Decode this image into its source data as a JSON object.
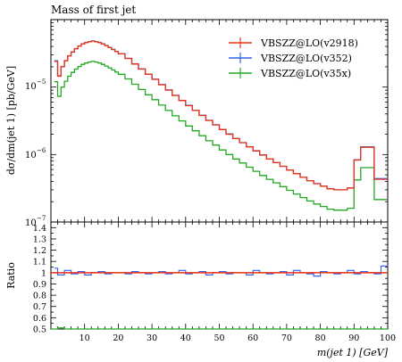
{
  "chart_data": [
    {
      "type": "line",
      "title": "Mass of first jet",
      "xlabel": "",
      "ylabel": "dσ/dm(jet 1) [pb/GeV]",
      "yscale": "log",
      "xlim": [
        0,
        100
      ],
      "ylim": [
        1e-07,
        0.0001
      ],
      "y_ticks": [
        "10^{-7}",
        "10^{-6}",
        "10^{-5}"
      ],
      "legend": "top-right",
      "series": [
        {
          "name": "VBSZZ@LO(v2918)",
          "color": "#ee3311",
          "x": [
            1,
            2,
            3,
            4,
            5,
            6,
            7,
            8,
            9,
            10,
            11,
            12,
            13,
            14,
            15,
            16,
            17,
            18,
            19,
            20,
            22,
            24,
            26,
            28,
            30,
            32,
            34,
            36,
            38,
            40,
            42,
            44,
            46,
            48,
            50,
            52,
            54,
            56,
            58,
            60,
            62,
            64,
            66,
            68,
            70,
            72,
            74,
            76,
            78,
            80,
            82,
            84,
            86,
            88,
            90,
            92,
            94,
            96,
            98,
            100
          ],
          "y": [
            2.4e-05,
            1.45e-05,
            2e-05,
            2.45e-05,
            2.9e-05,
            3.3e-05,
            3.7e-05,
            4.05e-05,
            4.35e-05,
            4.55e-05,
            4.7e-05,
            4.8e-05,
            4.7e-05,
            4.55e-05,
            4.35e-05,
            4.1e-05,
            3.85e-05,
            3.6e-05,
            3.35e-05,
            3.1e-05,
            2.65e-05,
            2.2e-05,
            1.85e-05,
            1.55e-05,
            1.3e-05,
            1.08e-05,
            9e-06,
            7.5e-06,
            6.3e-06,
            5.3e-06,
            4.5e-06,
            3.8e-06,
            3.2e-06,
            2.75e-06,
            2.35e-06,
            2e-06,
            1.72e-06,
            1.5e-06,
            1.3e-06,
            1.13e-06,
            9.8e-07,
            8.6e-07,
            7.6e-07,
            6.7e-07,
            5.9e-07,
            5.2e-07,
            4.6e-07,
            4.1e-07,
            3.7e-07,
            3.4e-07,
            3.1e-07,
            3e-07,
            3e-07,
            3.2e-07,
            8.3e-07,
            1.28e-06,
            1.28e-06,
            4.3e-07,
            4.3e-07,
            4.3e-07
          ]
        },
        {
          "name": "VBSZZ@LO(v352)",
          "color": "#3366ee",
          "x": [
            1,
            2,
            3,
            4,
            5,
            6,
            7,
            8,
            9,
            10,
            11,
            12,
            13,
            14,
            15,
            16,
            17,
            18,
            19,
            20,
            22,
            24,
            26,
            28,
            30,
            32,
            34,
            36,
            38,
            40,
            42,
            44,
            46,
            48,
            50,
            52,
            54,
            56,
            58,
            60,
            62,
            64,
            66,
            68,
            70,
            72,
            74,
            76,
            78,
            80,
            82,
            84,
            86,
            88,
            90,
            92,
            94,
            96,
            98,
            100
          ],
          "y": [
            2.45e-05,
            1.47e-05,
            2.02e-05,
            2.47e-05,
            2.92e-05,
            3.32e-05,
            3.72e-05,
            4.08e-05,
            4.38e-05,
            4.58e-05,
            4.73e-05,
            4.83e-05,
            4.73e-05,
            4.58e-05,
            4.38e-05,
            4.13e-05,
            3.88e-05,
            3.63e-05,
            3.37e-05,
            3.12e-05,
            2.67e-05,
            2.22e-05,
            1.86e-05,
            1.56e-05,
            1.31e-05,
            1.09e-05,
            9.1e-06,
            7.55e-06,
            6.35e-06,
            5.35e-06,
            4.52e-06,
            3.82e-06,
            3.22e-06,
            2.77e-06,
            2.36e-06,
            2.02e-06,
            1.73e-06,
            1.5e-06,
            1.31e-06,
            1.14e-06,
            9.9e-07,
            8.6e-07,
            7.6e-07,
            6.7e-07,
            5.9e-07,
            5.2e-07,
            4.6e-07,
            4.1e-07,
            3.7e-07,
            3.4e-07,
            3.1e-07,
            3e-07,
            3e-07,
            3.2e-07,
            8.4e-07,
            1.3e-06,
            1.3e-06,
            4.4e-07,
            4.4e-07,
            4.4e-07
          ]
        },
        {
          "name": "VBSZZ@LO(v35x)",
          "color": "#22aa22",
          "x": [
            1,
            2,
            3,
            4,
            5,
            6,
            7,
            8,
            9,
            10,
            11,
            12,
            13,
            14,
            15,
            16,
            17,
            18,
            19,
            20,
            22,
            24,
            26,
            28,
            30,
            32,
            34,
            36,
            38,
            40,
            42,
            44,
            46,
            48,
            50,
            52,
            54,
            56,
            58,
            60,
            62,
            64,
            66,
            68,
            70,
            72,
            74,
            76,
            78,
            80,
            82,
            84,
            86,
            88,
            90,
            92,
            94,
            96,
            98,
            100
          ],
          "y": [
            1.2e-05,
            7.3e-06,
            1e-05,
            1.22e-05,
            1.45e-05,
            1.65e-05,
            1.85e-05,
            2.02e-05,
            2.17e-05,
            2.27e-05,
            2.35e-05,
            2.4e-05,
            2.35e-05,
            2.27e-05,
            2.17e-05,
            2.05e-05,
            1.92e-05,
            1.8e-05,
            1.67e-05,
            1.55e-05,
            1.32e-05,
            1.1e-05,
            9.2e-06,
            7.7e-06,
            6.5e-06,
            5.4e-06,
            4.5e-06,
            3.75e-06,
            3.15e-06,
            2.65e-06,
            2.25e-06,
            1.9e-06,
            1.6e-06,
            1.38e-06,
            1.17e-06,
            1e-06,
            8.6e-07,
            7.5e-07,
            6.5e-07,
            5.65e-07,
            4.9e-07,
            4.3e-07,
            3.8e-07,
            3.35e-07,
            2.95e-07,
            2.6e-07,
            2.3e-07,
            2.05e-07,
            1.85e-07,
            1.7e-07,
            1.55e-07,
            1.5e-07,
            1.5e-07,
            1.6e-07,
            4.2e-07,
            6.4e-07,
            6.4e-07,
            2.15e-07,
            2.15e-07,
            2.15e-07
          ]
        }
      ]
    },
    {
      "type": "line",
      "xlabel": "m(jet 1) [GeV]",
      "ylabel": "Ratio",
      "xlim": [
        0,
        100
      ],
      "ylim": [
        0.5,
        1.45
      ],
      "x_ticks": [
        10,
        20,
        30,
        40,
        50,
        60,
        70,
        80,
        90,
        100
      ],
      "y_ticks": [
        0.5,
        0.6,
        0.7,
        0.8,
        0.9,
        1,
        1.1,
        1.2,
        1.3,
        1.4
      ],
      "series": [
        {
          "name": "VBSZZ@LO(v2918)",
          "color": "#ee3311",
          "x": [
            0,
            100
          ],
          "y": [
            1.0,
            1.0
          ]
        },
        {
          "name": "VBSZZ@LO(v352)",
          "color": "#3366ee",
          "x": [
            1,
            2,
            4,
            6,
            8,
            10,
            12,
            14,
            16,
            18,
            20,
            22,
            24,
            26,
            28,
            30,
            32,
            34,
            36,
            38,
            40,
            42,
            44,
            46,
            48,
            50,
            52,
            54,
            56,
            58,
            60,
            62,
            64,
            66,
            68,
            70,
            72,
            74,
            76,
            78,
            80,
            82,
            84,
            86,
            88,
            90,
            92,
            94,
            96,
            98,
            100
          ],
          "y": [
            1.04,
            0.98,
            1.02,
            0.99,
            1.01,
            0.98,
            1.0,
            1.01,
            0.99,
            1.0,
            1.0,
            0.99,
            1.01,
            1.0,
            0.99,
            1.0,
            1.01,
            0.99,
            1.0,
            1.02,
            0.99,
            1.0,
            1.01,
            0.98,
            1.0,
            1.01,
            0.99,
            1.0,
            1.0,
            0.98,
            1.02,
            1.0,
            0.99,
            1.0,
            1.01,
            0.98,
            1.02,
            1.0,
            0.99,
            0.97,
            1.01,
            1.0,
            0.99,
            1.0,
            1.02,
            0.99,
            1.01,
            1.0,
            0.99,
            1.06,
            1.06
          ]
        },
        {
          "name": "VBSZZ@LO(v35x)",
          "color": "#22aa22",
          "x": [
            0,
            2,
            4,
            10,
            20,
            30,
            40,
            50,
            60,
            70,
            80,
            90,
            100
          ],
          "y": [
            0.5,
            0.51,
            0.5,
            0.5,
            0.5,
            0.5,
            0.5,
            0.5,
            0.5,
            0.5,
            0.5,
            0.5,
            0.5
          ]
        }
      ]
    }
  ]
}
